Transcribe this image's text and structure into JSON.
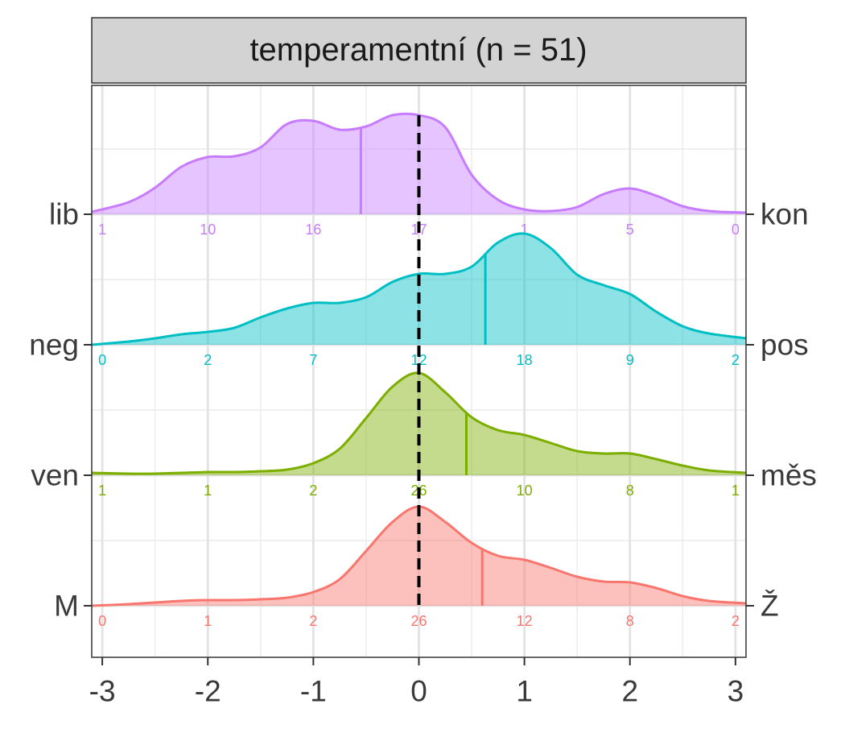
{
  "chart_data": {
    "type": "area",
    "title": "temperamentní (n = 51)",
    "xlabel": "",
    "ylabel": "",
    "xlim": [
      -3.1,
      3.1
    ],
    "x_ticks": [
      -3,
      -2,
      -1,
      0,
      1,
      2,
      3
    ],
    "x_tick_labels": [
      "-3",
      "-2",
      "-1",
      "0",
      "1",
      "2",
      "3"
    ],
    "grid": true,
    "reference_line_x": 0,
    "count_positions": [
      -3,
      -2,
      -1,
      0,
      1,
      2,
      3
    ],
    "x": [
      -3.1,
      -2.75,
      -2.5,
      -2.25,
      -2.0,
      -1.75,
      -1.5,
      -1.25,
      -1.0,
      -0.75,
      -0.5,
      -0.25,
      0.0,
      0.25,
      0.5,
      0.75,
      1.0,
      1.25,
      1.5,
      1.75,
      2.0,
      2.25,
      2.5,
      2.75,
      3.1
    ],
    "series": [
      {
        "left_label": "M",
        "right_label": "Ž",
        "color": "#F8766D",
        "mean": 0.6,
        "counts": [
          "0",
          "1",
          "2",
          "26",
          "12",
          "8",
          "2"
        ],
        "density": [
          0.0,
          0.02,
          0.04,
          0.06,
          0.07,
          0.07,
          0.08,
          0.1,
          0.17,
          0.33,
          0.68,
          1.04,
          1.23,
          1.04,
          0.78,
          0.62,
          0.57,
          0.47,
          0.36,
          0.3,
          0.29,
          0.22,
          0.12,
          0.06,
          0.03
        ]
      },
      {
        "left_label": "ven",
        "right_label": "měs",
        "color": "#7CAE00",
        "mean": 0.45,
        "counts": [
          "1",
          "1",
          "2",
          "26",
          "10",
          "8",
          "1"
        ],
        "density": [
          0.03,
          0.02,
          0.02,
          0.03,
          0.04,
          0.04,
          0.05,
          0.07,
          0.15,
          0.33,
          0.71,
          1.1,
          1.27,
          1.03,
          0.72,
          0.56,
          0.5,
          0.4,
          0.3,
          0.27,
          0.27,
          0.2,
          0.12,
          0.06,
          0.03
        ]
      },
      {
        "left_label": "neg",
        "right_label": "pos",
        "color": "#00BFC4",
        "mean": 0.63,
        "counts": [
          "0",
          "2",
          "7",
          "12",
          "18",
          "9",
          "2"
        ],
        "density": [
          0.0,
          0.04,
          0.08,
          0.13,
          0.16,
          0.21,
          0.34,
          0.45,
          0.52,
          0.52,
          0.59,
          0.78,
          0.88,
          0.88,
          0.97,
          1.27,
          1.38,
          1.2,
          0.87,
          0.74,
          0.63,
          0.41,
          0.23,
          0.14,
          0.08
        ]
      },
      {
        "left_label": "lib",
        "right_label": "kon",
        "color": "#C77CFF",
        "mean": -0.55,
        "counts": [
          "1",
          "10",
          "16",
          "17",
          "1",
          "5",
          "0"
        ],
        "density": [
          0.03,
          0.15,
          0.33,
          0.59,
          0.71,
          0.72,
          0.83,
          1.12,
          1.16,
          1.05,
          1.09,
          1.23,
          1.23,
          1.08,
          0.49,
          0.18,
          0.06,
          0.04,
          0.09,
          0.25,
          0.32,
          0.23,
          0.1,
          0.04,
          0.02
        ]
      }
    ]
  }
}
